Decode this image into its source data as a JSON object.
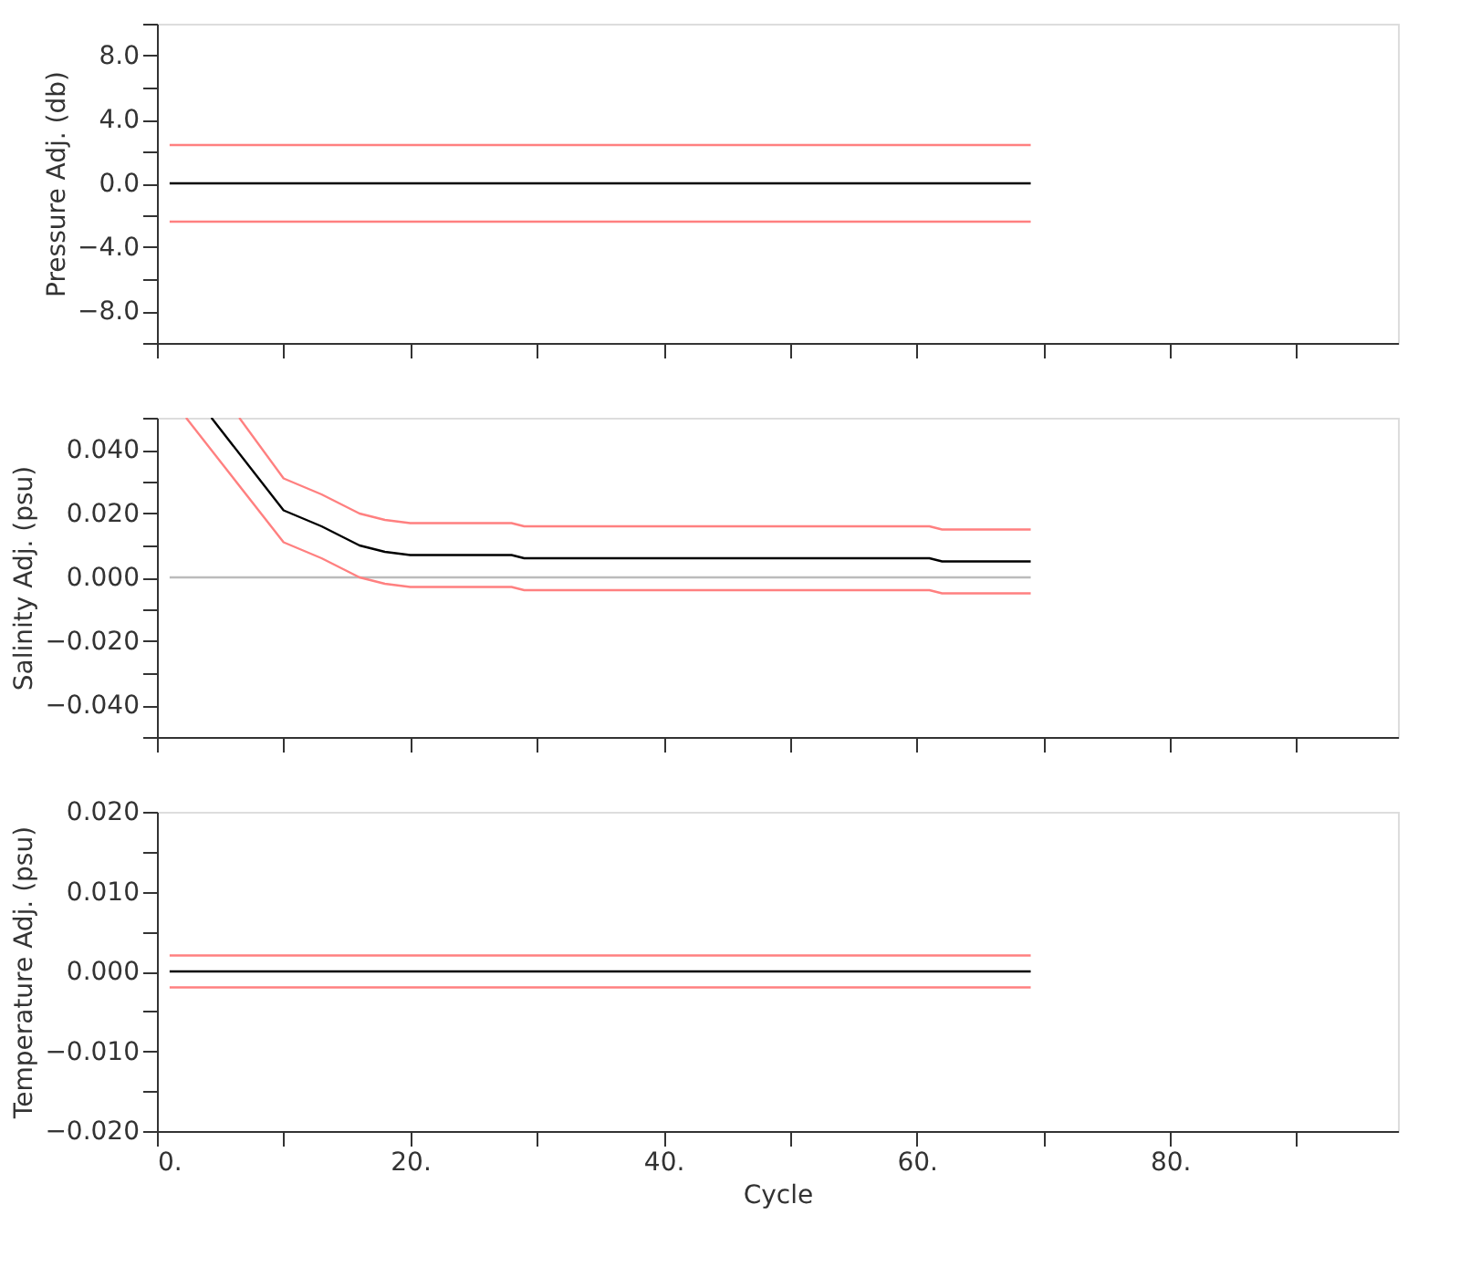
{
  "chart_data": [
    {
      "type": "line",
      "ylabel": "Pressure Adj. (db)",
      "tick_labels": "y",
      "xlim": [
        0,
        98
      ],
      "ylim": [
        -10,
        10
      ],
      "xticks": [
        {
          "value": 0,
          "label": null
        },
        {
          "value": 10,
          "label": null
        },
        {
          "value": 20,
          "label": null
        },
        {
          "value": 30,
          "label": null
        },
        {
          "value": 40,
          "label": null
        },
        {
          "value": 50,
          "label": null
        },
        {
          "value": 60,
          "label": null
        },
        {
          "value": 70,
          "label": null
        },
        {
          "value": 80,
          "label": null
        },
        {
          "value": 90,
          "label": null
        }
      ],
      "yticks": [
        {
          "value": -10,
          "label": null
        },
        {
          "value": -8,
          "label": "−8.0"
        },
        {
          "value": -6,
          "label": null
        },
        {
          "value": -4,
          "label": "−4.0"
        },
        {
          "value": -2,
          "label": null
        },
        {
          "value": 0,
          "label": "0.0"
        },
        {
          "value": 2,
          "label": null
        },
        {
          "value": 4,
          "label": "4.0"
        },
        {
          "value": 6,
          "label": null
        },
        {
          "value": 8,
          "label": "8.0"
        },
        {
          "value": 10,
          "label": null
        }
      ],
      "series": [
        {
          "color": "#ff8080",
          "x": [
            1,
            69
          ],
          "values": [
            2.4,
            2.4
          ]
        },
        {
          "color": "#000000",
          "x": [
            1,
            69
          ],
          "values": [
            0,
            0
          ]
        },
        {
          "color": "#ff8080",
          "x": [
            1,
            69
          ],
          "values": [
            -2.4,
            -2.4
          ]
        }
      ]
    },
    {
      "type": "line",
      "ylabel": "Salinity Adj. (psu)",
      "tick_labels": "y",
      "xlim": [
        0,
        98
      ],
      "ylim": [
        -0.05,
        0.05
      ],
      "xticks": [
        {
          "value": 0,
          "label": null
        },
        {
          "value": 10,
          "label": null
        },
        {
          "value": 20,
          "label": null
        },
        {
          "value": 30,
          "label": null
        },
        {
          "value": 40,
          "label": null
        },
        {
          "value": 50,
          "label": null
        },
        {
          "value": 60,
          "label": null
        },
        {
          "value": 70,
          "label": null
        },
        {
          "value": 80,
          "label": null
        },
        {
          "value": 90,
          "label": null
        }
      ],
      "yticks": [
        {
          "value": -0.05,
          "label": null
        },
        {
          "value": -0.04,
          "label": "−0.040"
        },
        {
          "value": -0.03,
          "label": null
        },
        {
          "value": -0.02,
          "label": "−0.020"
        },
        {
          "value": -0.01,
          "label": null
        },
        {
          "value": 0,
          "label": "0.000"
        },
        {
          "value": 0.01,
          "label": null
        },
        {
          "value": 0.02,
          "label": "0.020"
        },
        {
          "value": 0.03,
          "label": null
        },
        {
          "value": 0.04,
          "label": "0.040"
        },
        {
          "value": 0.05,
          "label": null
        }
      ],
      "series": [
        {
          "color": "#bbbbbb",
          "x": [
            1,
            69
          ],
          "values": [
            0,
            0
          ]
        },
        {
          "color": "#ff8080",
          "x": [
            6.5,
            10,
            13,
            16,
            18,
            20,
            28,
            29,
            61,
            62,
            69
          ],
          "values": [
            0.05,
            0.031,
            0.026,
            0.02,
            0.018,
            0.017,
            0.017,
            0.016,
            0.016,
            0.015,
            0.015
          ]
        },
        {
          "color": "#000000",
          "x": [
            4.3,
            10,
            13,
            16,
            18,
            20,
            28,
            29,
            61,
            62,
            69
          ],
          "values": [
            0.05,
            0.021,
            0.016,
            0.01,
            0.008,
            0.007,
            0.007,
            0.006,
            0.006,
            0.005,
            0.005
          ]
        },
        {
          "color": "#ff8080",
          "x": [
            2.3,
            10,
            13,
            16,
            18,
            20,
            28,
            29,
            61,
            62,
            69
          ],
          "values": [
            0.05,
            0.011,
            0.006,
            0.0,
            -0.002,
            -0.003,
            -0.003,
            -0.004,
            -0.004,
            -0.005,
            -0.005
          ]
        }
      ]
    },
    {
      "type": "line",
      "xlabel": "Cycle",
      "ylabel": "Temperature Adj. (psu)",
      "xlim": [
        0,
        98
      ],
      "ylim": [
        -0.02,
        0.02
      ],
      "xticks": [
        {
          "value": 0,
          "label": "0."
        },
        {
          "value": 10,
          "label": null
        },
        {
          "value": 20,
          "label": "20."
        },
        {
          "value": 30,
          "label": null
        },
        {
          "value": 40,
          "label": "40."
        },
        {
          "value": 50,
          "label": null
        },
        {
          "value": 60,
          "label": "60."
        },
        {
          "value": 70,
          "label": null
        },
        {
          "value": 80,
          "label": "80."
        },
        {
          "value": 90,
          "label": null
        }
      ],
      "yticks": [
        {
          "value": -0.02,
          "label": "−0.020"
        },
        {
          "value": -0.015,
          "label": null
        },
        {
          "value": -0.01,
          "label": "−0.010"
        },
        {
          "value": -0.005,
          "label": null
        },
        {
          "value": 0,
          "label": "0.000"
        },
        {
          "value": 0.005,
          "label": null
        },
        {
          "value": 0.01,
          "label": "0.010"
        },
        {
          "value": 0.015,
          "label": null
        },
        {
          "value": 0.02,
          "label": "0.020"
        }
      ],
      "series": [
        {
          "color": "#ff8080",
          "x": [
            1,
            69
          ],
          "values": [
            0.002,
            0.002
          ]
        },
        {
          "color": "#000000",
          "x": [
            1,
            69
          ],
          "values": [
            0,
            0
          ]
        },
        {
          "color": "#ff8080",
          "x": [
            1,
            69
          ],
          "values": [
            -0.002,
            -0.002
          ]
        }
      ]
    }
  ]
}
